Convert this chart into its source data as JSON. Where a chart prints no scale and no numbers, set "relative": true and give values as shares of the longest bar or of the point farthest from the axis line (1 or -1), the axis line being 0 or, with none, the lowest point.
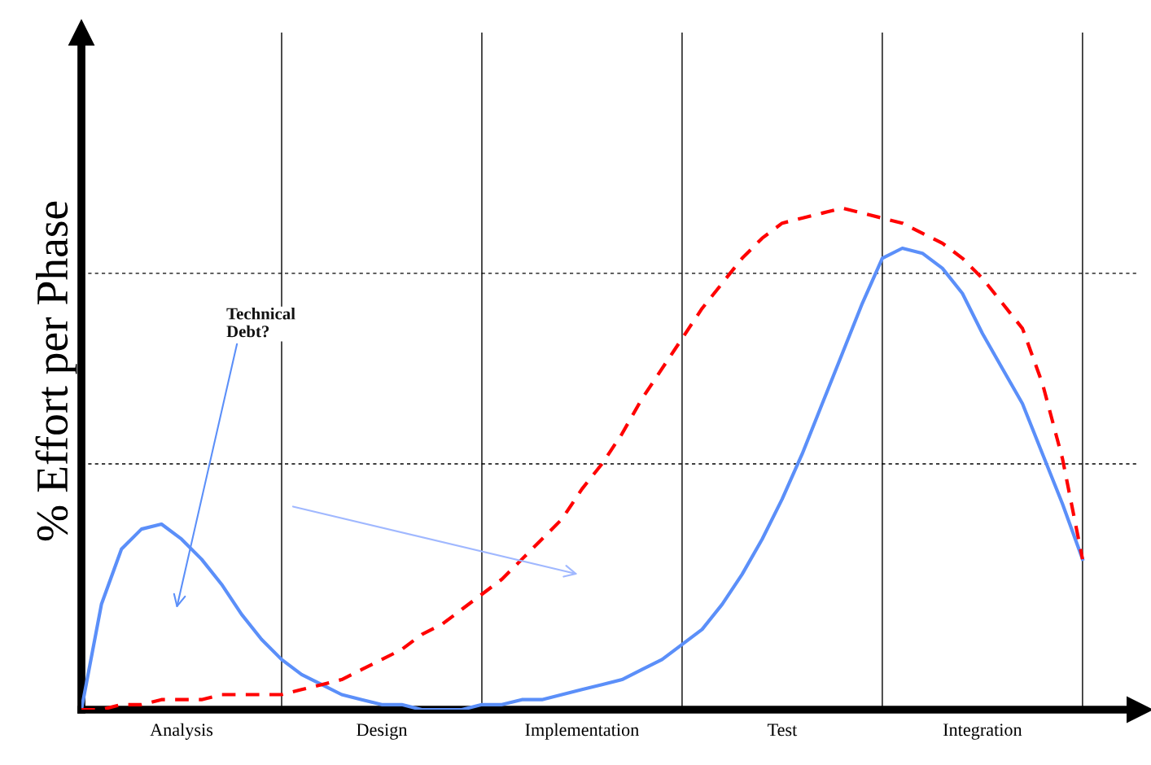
{
  "chart_data": {
    "type": "line",
    "relative": true,
    "ylabel": "% Effort per Phase",
    "categories": [
      null,
      null,
      null,
      null,
      null,
      "Analysis",
      null,
      null,
      null,
      null,
      null,
      null,
      null,
      null,
      null,
      "Design",
      null,
      null,
      null,
      null,
      null,
      null,
      null,
      null,
      null,
      "Implementation",
      null,
      null,
      null,
      null,
      null,
      null,
      null,
      null,
      null,
      "Test",
      null,
      null,
      null,
      null,
      null,
      null,
      null,
      null,
      null,
      "Integration",
      null,
      null,
      null,
      null,
      null
    ],
    "series": [
      {
        "color": "#5b8ff9",
        "line_style": "solid",
        "values": [
          0.0,
          0.21,
          0.32,
          0.36,
          0.37,
          0.34,
          0.3,
          0.25,
          0.19,
          0.14,
          0.1,
          0.07,
          0.05,
          0.03,
          0.02,
          0.01,
          0.01,
          0.0,
          0.0,
          0.0,
          0.01,
          0.01,
          0.02,
          0.02,
          0.03,
          0.04,
          0.05,
          0.06,
          0.08,
          0.1,
          0.13,
          0.16,
          0.21,
          0.27,
          0.34,
          0.42,
          0.51,
          0.61,
          0.71,
          0.81,
          0.9,
          0.92,
          0.91,
          0.88,
          0.83,
          0.75,
          0.68,
          0.61,
          0.51,
          0.41,
          0.3
        ]
      },
      {
        "color": "#ff0000",
        "line_style": "dashed",
        "values": [
          0.0,
          0.0,
          0.01,
          0.01,
          0.02,
          0.02,
          0.02,
          0.03,
          0.03,
          0.03,
          0.03,
          0.04,
          0.05,
          0.06,
          0.08,
          0.1,
          0.12,
          0.15,
          0.17,
          0.2,
          0.23,
          0.26,
          0.3,
          0.34,
          0.38,
          0.44,
          0.49,
          0.55,
          0.62,
          0.68,
          0.74,
          0.8,
          0.85,
          0.9,
          0.94,
          0.97,
          0.98,
          0.99,
          1.0,
          0.99,
          0.98,
          0.97,
          0.95,
          0.93,
          0.9,
          0.86,
          0.81,
          0.76,
          0.65,
          0.5,
          0.3
        ]
      }
    ],
    "ref_lines": [
      {
        "axis": "y",
        "value": 0.87,
        "color": "#000000",
        "line_style": "dashed"
      },
      {
        "axis": "y",
        "value": 0.49,
        "color": "#000000",
        "line_style": "dashed"
      }
    ],
    "annotations": [
      "Technical\nDebt?"
    ],
    "grid": "x",
    "legend": false,
    "marker": "none"
  }
}
